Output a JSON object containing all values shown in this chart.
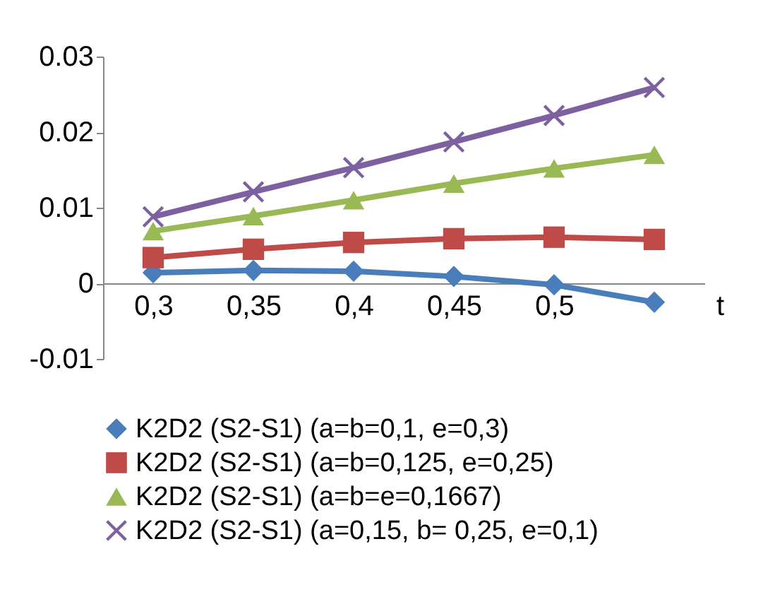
{
  "chart_data": {
    "type": "line",
    "categories": [
      "0,3",
      "0,35",
      "0,4",
      "0,45",
      "0,5",
      null
    ],
    "xlabel": "t",
    "ylim": [
      -0.01,
      0.03
    ],
    "yticks": [
      -0.01,
      0,
      0.01,
      0.02,
      0.03
    ],
    "grid": false,
    "legend": "bottom",
    "series": [
      {
        "name": "K2D2 (S2-S1) (a=b=0,1, e=0,3)",
        "color": "#4a7ebb",
        "marker": "diamond",
        "values": [
          0.0014,
          0.0017,
          0.0016,
          0.0009,
          -0.0002,
          -0.0025
        ]
      },
      {
        "name": "K2D2 (S2-S1) (a=b=0,125, e=0,25)",
        "color": "#be4b48",
        "marker": "square",
        "values": [
          0.0034,
          0.0045,
          0.0054,
          0.0059,
          0.0061,
          0.0058
        ]
      },
      {
        "name": "K2D2 (S2-S1) (a=b=e=0,1667)",
        "color": "#98b954",
        "marker": "triangle",
        "values": [
          0.0069,
          0.0089,
          0.011,
          0.0132,
          0.0152,
          0.017
        ]
      },
      {
        "name": "K2D2 (S2-S1) (a=0,15, b= 0,25, e=0,1)",
        "color": "#7d60a0",
        "marker": "cross",
        "values": [
          0.0088,
          0.0121,
          0.0153,
          0.0187,
          0.0222,
          0.0259
        ]
      }
    ]
  }
}
